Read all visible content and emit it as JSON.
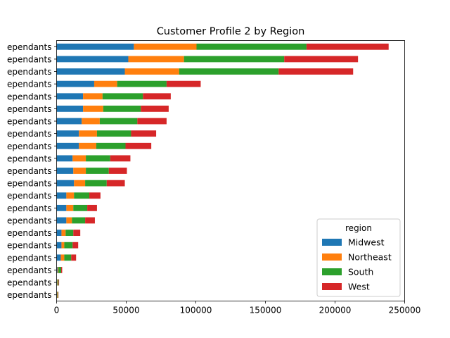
{
  "chart_data": {
    "type": "bar",
    "orientation": "horizontal",
    "stacked": true,
    "title": "Customer Profile 2 by Region",
    "xlabel": "",
    "ylabel": "",
    "xlim": [
      0,
      250000
    ],
    "x_ticks": [
      0,
      50000,
      100000,
      150000,
      200000,
      250000
    ],
    "x_tick_labels": [
      "0",
      "50000",
      "100000",
      "150000",
      "200000",
      "250000"
    ],
    "grid": false,
    "categories": [
      "ependants",
      "ependants",
      "ependants",
      "ependants",
      "ependants",
      "ependants",
      "ependants",
      "ependants",
      "ependants",
      "ependants",
      "ependants",
      "ependants",
      "ependants",
      "ependants",
      "ependants",
      "ependants",
      "ependants",
      "ependants",
      "ependants",
      "ependants",
      "ependants"
    ],
    "series": [
      {
        "name": "Midwest",
        "color": "#1f77b4",
        "values": [
          55500,
          51500,
          49000,
          27000,
          19000,
          19000,
          18000,
          16000,
          16000,
          11500,
          12000,
          12500,
          7000,
          7000,
          7000,
          3500,
          3500,
          3000,
          700,
          400,
          300
        ]
      },
      {
        "name": "Northeast",
        "color": "#ff7f0e",
        "values": [
          45000,
          40000,
          39000,
          16500,
          14000,
          14500,
          13000,
          13000,
          12500,
          9500,
          9000,
          8000,
          5500,
          5000,
          4000,
          3000,
          2000,
          2500,
          600,
          300,
          300
        ]
      },
      {
        "name": "South",
        "color": "#2ca02c",
        "values": [
          79000,
          72000,
          71500,
          35500,
          29000,
          27000,
          27000,
          24500,
          21000,
          17500,
          16500,
          15500,
          11000,
          10000,
          9500,
          5500,
          6000,
          5000,
          2000,
          700,
          400
        ]
      },
      {
        "name": "West",
        "color": "#d62728",
        "values": [
          59000,
          53000,
          53500,
          24500,
          20000,
          20000,
          21000,
          18000,
          18500,
          14500,
          13000,
          13000,
          8000,
          7000,
          7000,
          5000,
          4000,
          3500,
          700,
          400,
          300
        ]
      }
    ],
    "legend": {
      "title": "region",
      "placement": "lower-right"
    }
  }
}
